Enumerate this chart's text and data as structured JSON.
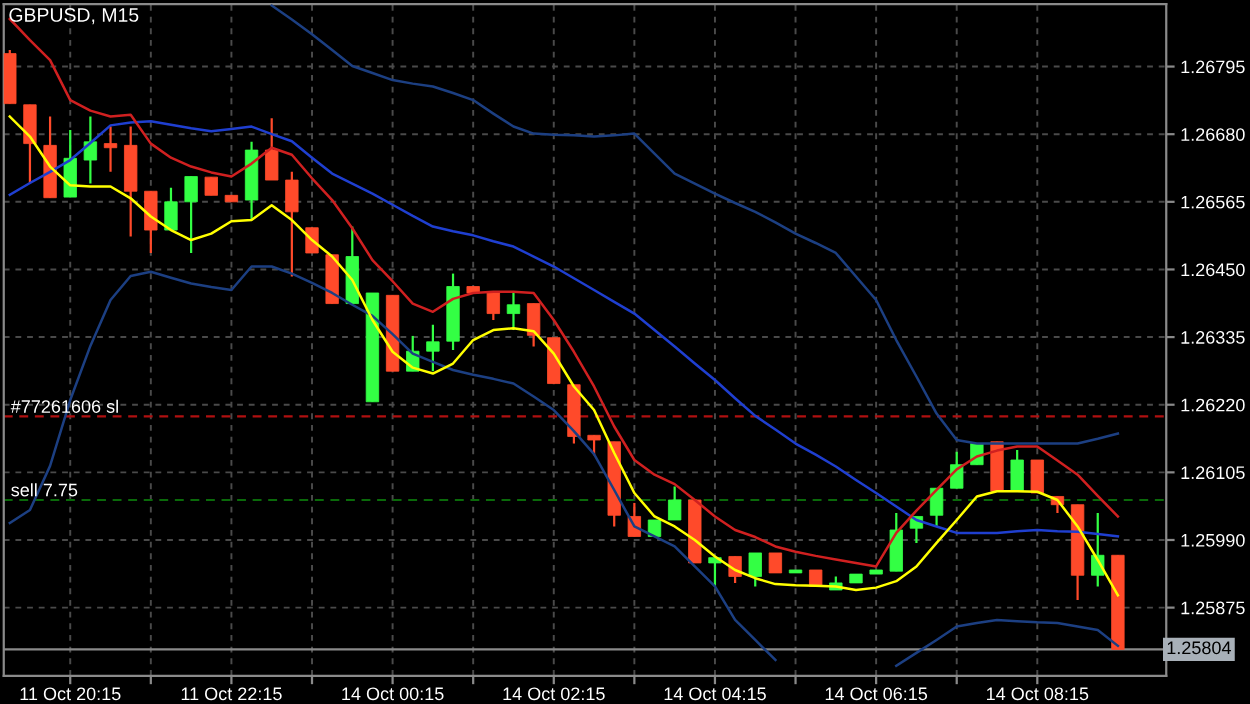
{
  "chart_data": {
    "type": "candlestick",
    "title": "GBPUSD, M15",
    "categories": [
      null,
      null,
      null,
      "11 Oct 20:15",
      null,
      null,
      null,
      null,
      null,
      null,
      null,
      "11 Oct 22:15",
      null,
      null,
      null,
      null,
      null,
      null,
      null,
      "14 Oct 00:15",
      null,
      null,
      null,
      null,
      null,
      null,
      null,
      "14 Oct 02:15",
      null,
      null,
      null,
      null,
      null,
      null,
      null,
      "14 Oct 04:15",
      null,
      null,
      null,
      null,
      null,
      null,
      null,
      "14 Oct 06:15",
      null,
      null,
      null,
      null,
      null,
      null,
      null,
      "14 Oct 08:15",
      null,
      null,
      null,
      null
    ],
    "ohlc": [
      [
        1.26817,
        1.26823,
        1.26732,
        1.26732
      ],
      [
        1.2673,
        1.2673,
        1.26596,
        1.26664
      ],
      [
        1.26661,
        1.2671,
        1.26572,
        1.26572
      ],
      [
        1.26573,
        1.26687,
        1.26573,
        1.26639
      ],
      [
        1.26636,
        1.2671,
        1.26596,
        1.26667
      ],
      [
        1.26664,
        1.26693,
        1.26616,
        1.26657
      ],
      [
        1.26661,
        1.26693,
        1.26506,
        1.26583
      ],
      [
        1.26583,
        1.26583,
        1.26478,
        1.26517
      ],
      [
        1.26517,
        1.26589,
        1.26517,
        1.26565
      ],
      [
        1.26565,
        1.26608,
        1.26478,
        1.26608
      ],
      [
        1.26607,
        1.26607,
        1.26576,
        1.26576
      ],
      [
        1.26576,
        1.26576,
        1.26565,
        1.26565
      ],
      [
        1.26568,
        1.26667,
        1.26534,
        1.26653
      ],
      [
        1.26653,
        1.26707,
        1.26602,
        1.26602
      ],
      [
        1.26602,
        1.26616,
        1.26438,
        1.26548
      ],
      [
        1.26521,
        1.26521,
        1.26478,
        1.26478
      ],
      [
        1.26475,
        1.26475,
        1.26392,
        1.26392
      ],
      [
        1.26392,
        1.26523,
        1.26392,
        1.26472
      ],
      [
        1.26225,
        1.2641,
        1.26225,
        1.2641
      ],
      [
        1.26406,
        1.26406,
        1.26277,
        1.26277
      ],
      [
        1.26277,
        1.26337,
        1.26277,
        1.26311
      ],
      [
        1.26311,
        1.26356,
        1.26277,
        1.26327
      ],
      [
        1.26328,
        1.26443,
        1.26313,
        1.26421
      ],
      [
        1.26421,
        1.26421,
        1.2641,
        1.2641
      ],
      [
        1.2641,
        1.2641,
        1.26364,
        1.26375
      ],
      [
        1.26375,
        1.2641,
        1.26347,
        1.2639
      ],
      [
        1.26392,
        1.26392,
        1.26319,
        1.26338
      ],
      [
        1.26334,
        1.26334,
        1.26256,
        1.26256
      ],
      [
        1.26254,
        1.26254,
        1.26154,
        1.26166
      ],
      [
        1.26168,
        1.26168,
        1.26134,
        1.2616
      ],
      [
        1.26157,
        1.26157,
        1.26013,
        1.26032
      ],
      [
        1.2603,
        1.26053,
        1.25996,
        1.25996
      ],
      [
        1.25996,
        1.26024,
        1.25996,
        1.26024
      ],
      [
        1.26024,
        1.26081,
        1.26024,
        1.26058
      ],
      [
        1.26058,
        1.26058,
        1.25951,
        1.25951
      ],
      [
        1.25951,
        1.2596,
        1.25911,
        1.2596
      ],
      [
        1.25962,
        1.25962,
        1.25917,
        1.25928
      ],
      [
        1.25928,
        1.25968,
        1.25911,
        1.25968
      ],
      [
        1.25968,
        1.25968,
        1.25934,
        1.25934
      ],
      [
        1.25934,
        1.25939,
        1.25934,
        1.25939
      ],
      [
        1.25939,
        1.25939,
        1.25911,
        1.25911
      ],
      [
        1.25905,
        1.25928,
        1.25905,
        1.25917
      ],
      [
        1.25917,
        1.25932,
        1.25917,
        1.25932
      ],
      [
        1.25932,
        1.25939,
        1.25932,
        1.25939
      ],
      [
        1.25937,
        1.26036,
        1.25937,
        1.26007
      ],
      [
        1.2601,
        1.2603,
        1.25985,
        1.2603
      ],
      [
        1.26032,
        1.26078,
        1.26013,
        1.26078
      ],
      [
        1.26078,
        1.2614,
        1.26078,
        1.26118
      ],
      [
        1.26118,
        1.26154,
        1.26118,
        1.26154
      ],
      [
        1.26157,
        1.26157,
        1.26073,
        1.26073
      ],
      [
        1.26073,
        1.26143,
        1.26073,
        1.26126
      ],
      [
        1.26126,
        1.26126,
        1.2607,
        1.2607
      ],
      [
        1.26064,
        1.26064,
        1.26036,
        1.2605
      ],
      [
        1.2605,
        1.2605,
        1.25888,
        1.2593
      ],
      [
        1.2593,
        1.26036,
        1.25911,
        1.25964
      ],
      [
        1.25964,
        1.25964,
        1.25804,
        1.25804
      ]
    ],
    "colors": [
      "#ff4a2a",
      "#ff4a2a",
      "#ff4a2a",
      "#33ff44",
      "#33ff44",
      "#ff4a2a",
      "#ff4a2a",
      "#ff4a2a",
      "#33ff44",
      "#33ff44",
      "#ff4a2a",
      "#ff4a2a",
      "#33ff44",
      "#ff4a2a",
      "#ff4a2a",
      "#ff4a2a",
      "#ff4a2a",
      "#33ff44",
      "#33ff44",
      "#ff4a2a",
      "#33ff44",
      "#33ff44",
      "#33ff44",
      "#ff4a2a",
      "#ff4a2a",
      "#33ff44",
      "#ff4a2a",
      "#ff4a2a",
      "#ff4a2a",
      "#ff4a2a",
      "#ff4a2a",
      "#ff4a2a",
      "#33ff44",
      "#33ff44",
      "#ff4a2a",
      "#33ff44",
      "#ff4a2a",
      "#33ff44",
      "#ff4a2a",
      "#33ff44",
      "#ff4a2a",
      "#33ff44",
      "#33ff44",
      "#33ff44",
      "#33ff44",
      "#33ff44",
      "#33ff44",
      "#33ff44",
      "#33ff44",
      "#ff4a2a",
      "#33ff44",
      "#ff4a2a",
      "#ff4a2a",
      "#ff4a2a",
      "#33ff44",
      "#ff4a2a"
    ],
    "series": [
      {
        "type": "line",
        "color": "#1c3f82",
        "values": [
          null,
          null,
          null,
          null,
          null,
          null,
          null,
          null,
          null,
          null,
          null,
          null,
          null,
          1.26899,
          1.26875,
          1.2685,
          1.26823,
          1.26796,
          1.26784,
          1.26772,
          1.26766,
          1.26761,
          1.2675,
          1.26738,
          1.26715,
          1.26693,
          1.26681,
          1.26679,
          1.26678,
          1.26676,
          1.26678,
          1.26681,
          1.26647,
          1.26613,
          1.26596,
          1.26579,
          1.26563,
          1.26548,
          1.2653,
          1.26511,
          1.26495,
          1.26478,
          1.26438,
          1.26398,
          1.2633,
          1.26268,
          1.26205,
          1.2616,
          1.26154,
          1.26154,
          1.26154,
          1.26154,
          1.26154,
          1.26154,
          1.26162,
          1.26171
        ]
      },
      {
        "type": "line",
        "color": "#1f3fd0",
        "values": [
          1.26577,
          1.26597,
          1.26616,
          1.26636,
          1.26665,
          1.26695,
          1.267,
          1.26702,
          1.26696,
          1.2669,
          1.26685,
          1.26689,
          1.26693,
          1.2668,
          1.26668,
          1.2664,
          1.26613,
          1.26596,
          1.26579,
          1.2656,
          1.26541,
          1.26523,
          1.26515,
          1.26508,
          1.26498,
          1.26489,
          1.26472,
          1.26455,
          1.26435,
          1.26415,
          1.26395,
          1.26375,
          1.26347,
          1.26319,
          1.2629,
          1.26262,
          1.26231,
          1.26201,
          1.26178,
          1.26154,
          1.26135,
          1.26115,
          1.26092,
          1.2607,
          1.26047,
          1.26024,
          1.26013,
          1.26002,
          1.26002,
          1.26002,
          1.26005,
          1.26007,
          1.26005,
          1.26004,
          1.26,
          1.25996
        ]
      },
      {
        "type": "line",
        "color": "#1c3f82",
        "values": [
          1.26019,
          1.26041,
          1.26116,
          1.26228,
          1.2632,
          1.26398,
          1.26439,
          1.26446,
          1.26436,
          1.26426,
          1.2642,
          1.26415,
          1.26455,
          1.26455,
          1.26443,
          1.26427,
          1.2641,
          1.2639,
          1.26371,
          1.2634,
          1.26307,
          1.26293,
          1.26279,
          1.26271,
          1.26264,
          1.26256,
          1.26234,
          1.26211,
          1.26175,
          1.26136,
          1.26075,
          1.26013,
          1.25996,
          1.25979,
          1.25945,
          1.25911,
          1.25854,
          1.2582,
          1.25786,
          null,
          null,
          null,
          null,
          null,
          1.25776,
          1.25798,
          1.2582,
          1.25843,
          1.25849,
          1.25854,
          1.25852,
          1.2585,
          1.25849,
          1.25843,
          1.25837,
          1.2581
        ]
      },
      {
        "type": "line",
        "color": "#d02020",
        "values": [
          1.26876,
          1.2684,
          1.26806,
          1.26738,
          1.2672,
          1.2671,
          1.26713,
          1.26664,
          1.2664,
          1.26625,
          1.26615,
          1.26608,
          1.2663,
          1.26657,
          1.26645,
          1.26605,
          1.26568,
          1.2652,
          1.26466,
          1.2643,
          1.26392,
          1.26378,
          1.264,
          1.2641,
          1.26412,
          1.26412,
          1.2641,
          1.26364,
          1.2631,
          1.26251,
          1.26183,
          1.26126,
          1.26101,
          1.26085,
          1.26058,
          1.2603,
          1.26007,
          1.25995,
          1.25979,
          1.2597,
          1.25963,
          1.25957,
          1.25951,
          1.25945,
          1.26002,
          1.2604,
          1.26075,
          1.2611,
          1.26132,
          1.26142,
          1.26149,
          1.26149,
          1.26125,
          1.26101,
          1.26065,
          1.2603
        ]
      },
      {
        "type": "line",
        "color": "#ffff00",
        "values": [
          1.2671,
          1.26676,
          1.26625,
          1.26593,
          1.26591,
          1.26591,
          1.26571,
          1.2654,
          1.26517,
          1.265,
          1.26511,
          1.26532,
          1.26534,
          1.26559,
          1.26534,
          1.265,
          1.26472,
          1.26432,
          1.26364,
          1.2631,
          1.26283,
          1.26273,
          1.2629,
          1.2633,
          1.26347,
          1.2635,
          1.26345,
          1.26307,
          1.26251,
          1.26211,
          1.26138,
          1.2607,
          1.2603,
          1.26013,
          1.2599,
          1.25962,
          1.25939,
          1.25925,
          1.25915,
          1.25913,
          1.25912,
          1.25911,
          1.25905,
          1.25909,
          1.2592,
          1.25945,
          1.25985,
          1.26024,
          1.26064,
          1.26073,
          1.26073,
          1.26072,
          1.26058,
          1.26013,
          1.25956,
          1.25896
        ]
      }
    ],
    "ref_lines": [
      {
        "axis": "y",
        "value": 1.262,
        "label": "#77261606 sl",
        "color": "#b01010",
        "line_style": "dashed"
      },
      {
        "axis": "y",
        "value": 1.26058,
        "label": "sell 7.75",
        "color": "#0a6a0a",
        "line_style": "dashed"
      },
      {
        "axis": "y",
        "value": 1.25804,
        "label": "1.25804",
        "color": "#8a8a8a",
        "line_style": "solid"
      }
    ],
    "ylim": [
      1.25759,
      1.26901
    ],
    "yticks": [
      {
        "value": 1.25875,
        "label": "1.25875"
      },
      {
        "value": 1.2599,
        "label": "1.25990"
      },
      {
        "value": 1.26105,
        "label": "1.26105"
      },
      {
        "value": 1.2622,
        "label": "1.26220"
      },
      {
        "value": 1.26335,
        "label": "1.26335"
      },
      {
        "value": 1.2645,
        "label": "1.26450"
      },
      {
        "value": 1.26565,
        "label": "1.26565"
      },
      {
        "value": 1.2668,
        "label": "1.26680"
      },
      {
        "value": 1.26795,
        "label": "1.26795"
      }
    ],
    "grid": true
  }
}
